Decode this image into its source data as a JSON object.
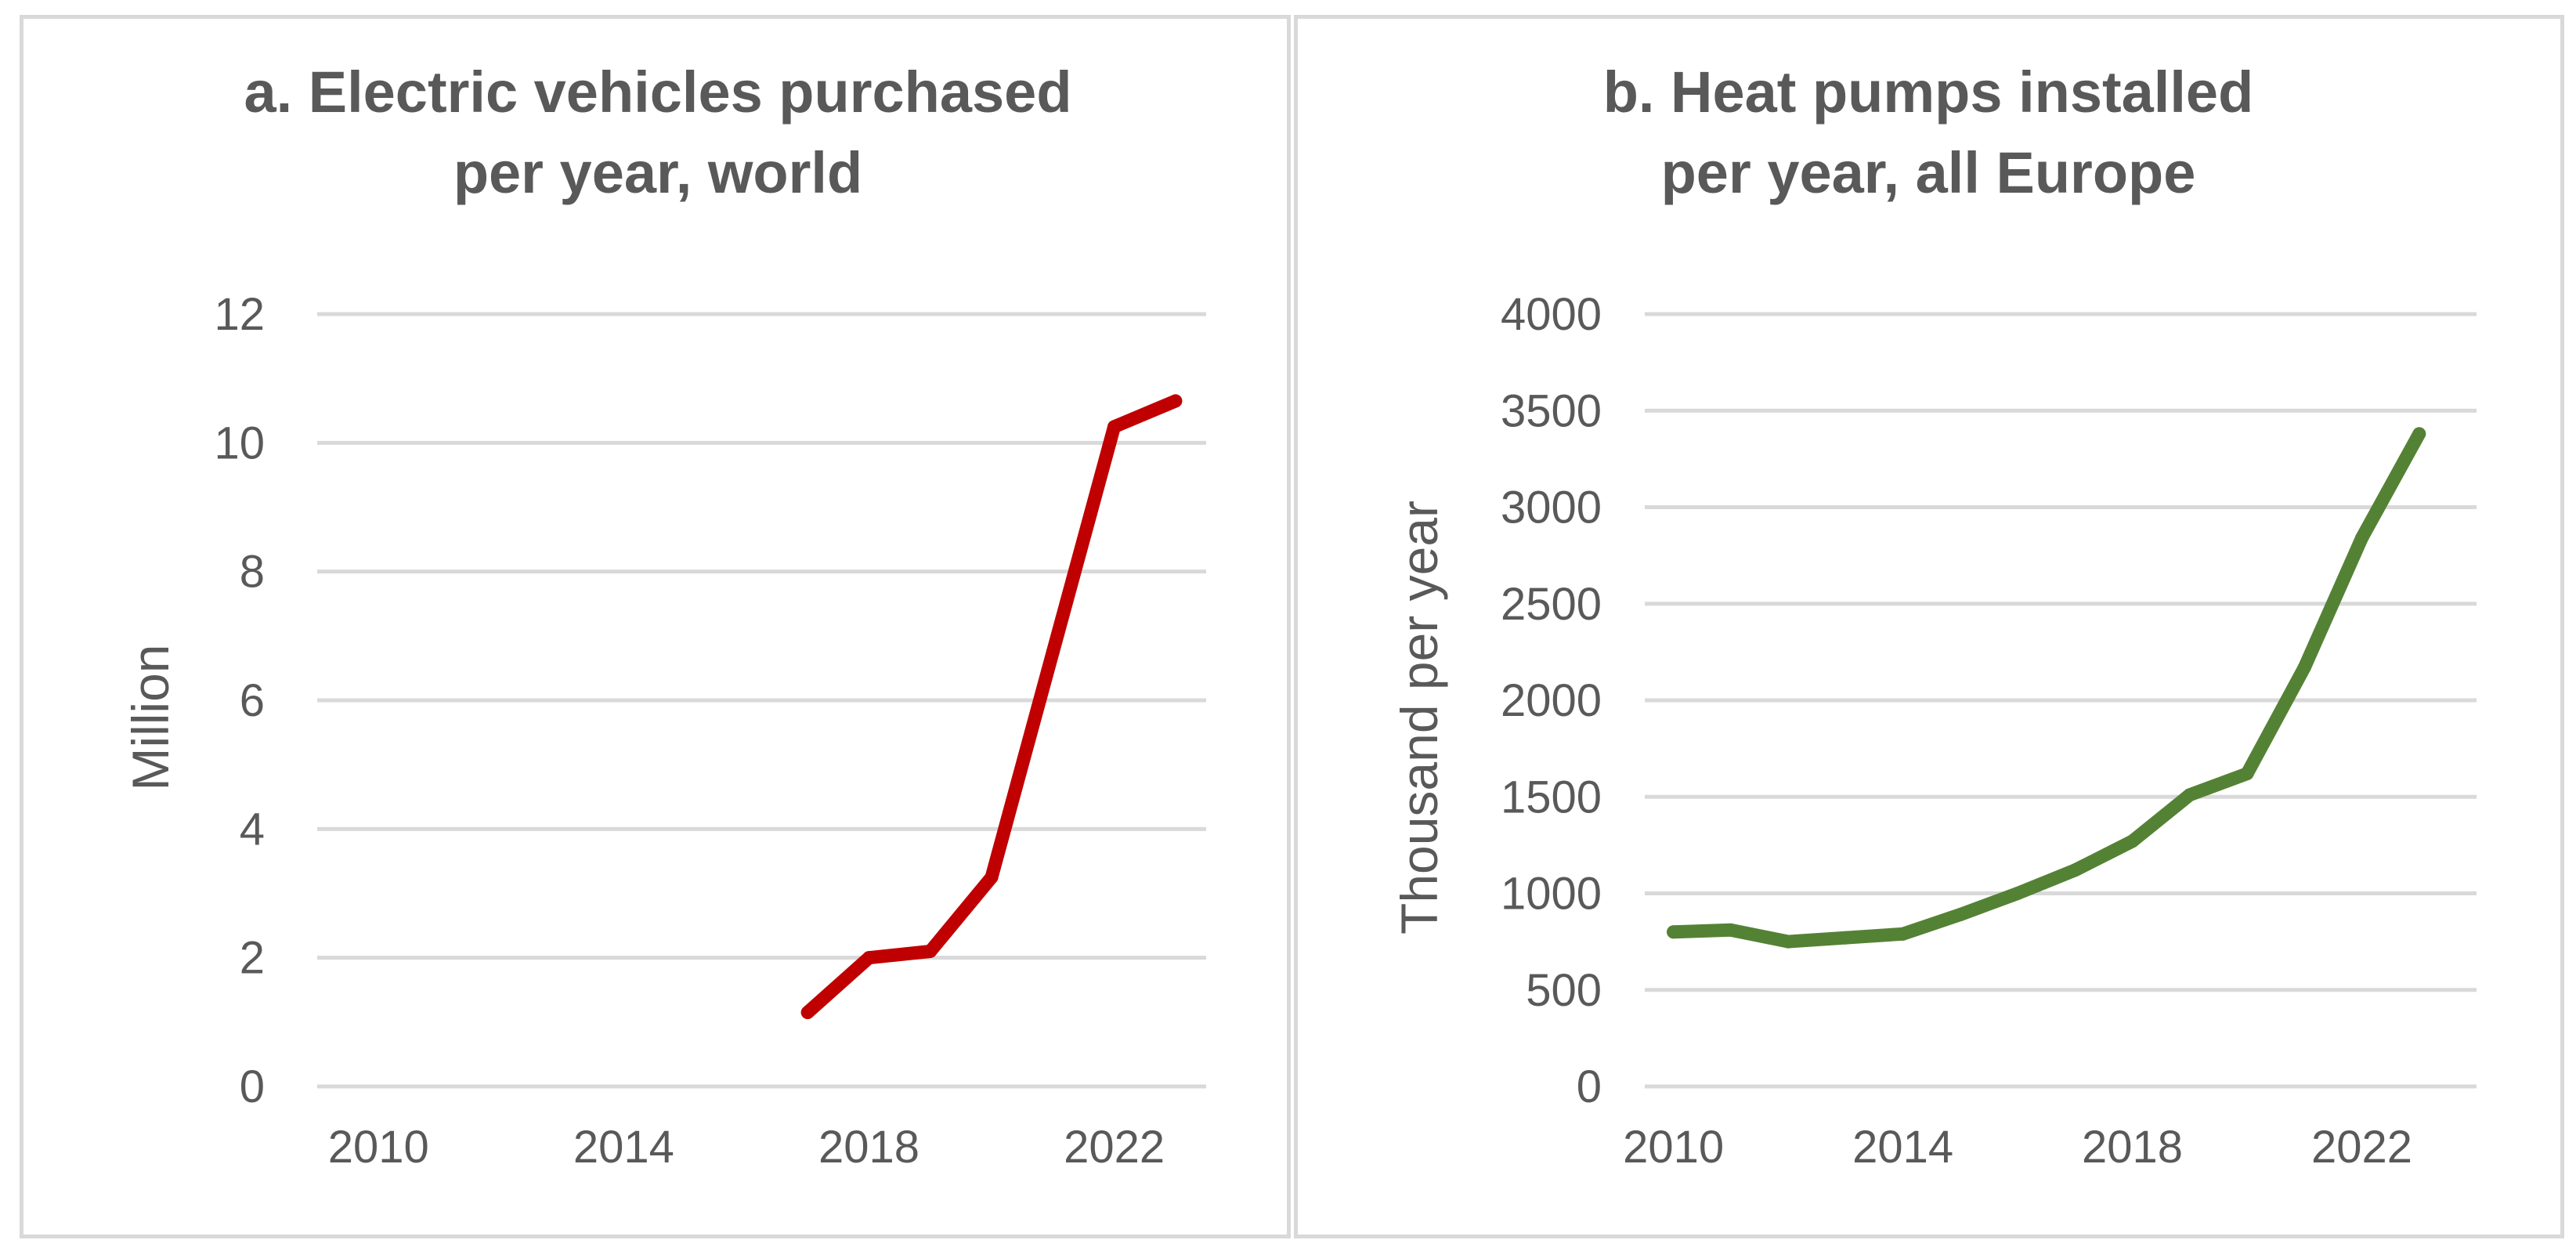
{
  "chart_data": [
    {
      "type": "line",
      "title_lines": [
        "a. Electric vehicles purchased",
        "per year, world"
      ],
      "xlabel": "",
      "ylabel": "Million",
      "x_ticks": [
        2010,
        2014,
        2018,
        2022
      ],
      "y_ticks": [
        0,
        2,
        4,
        6,
        8,
        10,
        12
      ],
      "xlim": [
        2009,
        2023.5
      ],
      "ylim": [
        0,
        12
      ],
      "grid": true,
      "series": [
        {
          "name": "Electric vehicles purchased",
          "color": "#c00000",
          "x": [
            2017,
            2018,
            2019,
            2020,
            2021,
            2022,
            2023
          ],
          "values": [
            1.15,
            2.0,
            2.1,
            3.25,
            6.75,
            10.25,
            10.65
          ]
        }
      ]
    },
    {
      "type": "line",
      "title_lines": [
        "b. Heat pumps installed",
        "per year, all Europe"
      ],
      "xlabel": "",
      "ylabel": "Thousand per year",
      "x_ticks": [
        2010,
        2014,
        2018,
        2022
      ],
      "y_ticks": [
        0,
        500,
        1000,
        1500,
        2000,
        2500,
        3000,
        3500,
        4000
      ],
      "xlim": [
        2009.5,
        2024
      ],
      "ylim": [
        0,
        4000
      ],
      "grid": true,
      "series": [
        {
          "name": "Heat pumps installed",
          "color": "#548235",
          "x": [
            2010,
            2011,
            2012,
            2013,
            2014,
            2015,
            2016,
            2017,
            2018,
            2019,
            2020,
            2021,
            2022,
            2023
          ],
          "values": [
            800,
            810,
            750,
            770,
            790,
            890,
            1000,
            1120,
            1270,
            1510,
            1620,
            2170,
            2840,
            3380
          ]
        }
      ]
    }
  ]
}
